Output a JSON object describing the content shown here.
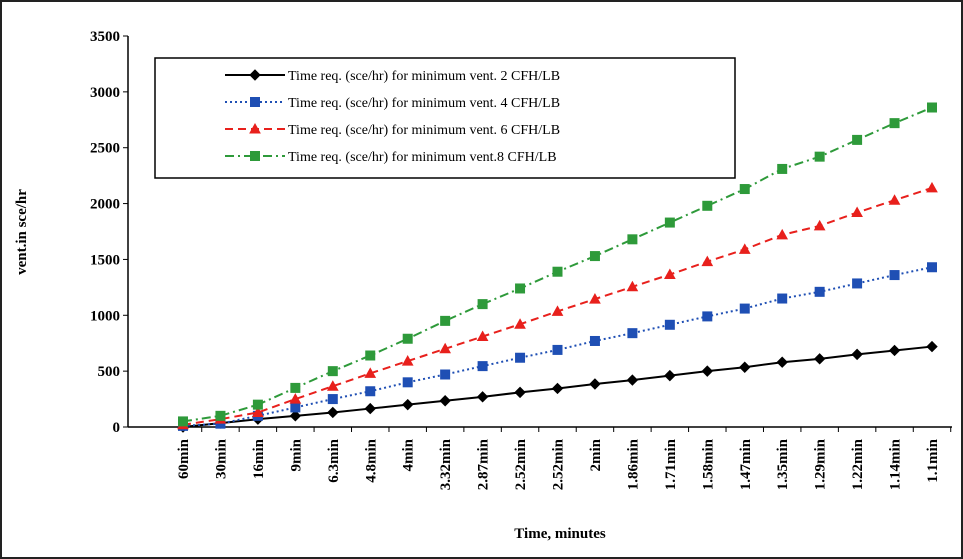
{
  "chart_data": {
    "type": "line",
    "x_label": "Time, minutes",
    "y_label": "vent.in sce/hr",
    "categories": [
      "60min",
      "30min",
      "16min",
      "9min",
      "6.3min",
      "4.8min",
      "4min",
      "3.32min",
      "2.87min",
      "2.52min",
      "2.52min",
      "2min",
      "1.86min",
      "1.71min",
      "1.58min",
      "1.47min",
      "1.35min",
      "1.29min",
      "1.22min",
      "1.14min",
      "1.1min"
    ],
    "ylim": [
      0,
      3500
    ],
    "yticks": [
      0,
      500,
      1000,
      1500,
      2000,
      2500,
      3000,
      3500
    ],
    "series": [
      {
        "name": "Time req. (sce/hr) for minimum vent. 2 CFH/LB",
        "color": "#000000",
        "marker": "diamond",
        "dash": "solid",
        "values": [
          0,
          35,
          70,
          100,
          130,
          165,
          200,
          235,
          270,
          310,
          345,
          385,
          420,
          460,
          500,
          535,
          580,
          610,
          650,
          685,
          720
        ]
      },
      {
        "name": "Time req. (sce/hr) for minimum vent. 4 CFH/LB",
        "color": "#1f4fb4",
        "marker": "square",
        "dash": "dotted",
        "values": [
          10,
          30,
          100,
          175,
          250,
          320,
          400,
          470,
          545,
          620,
          690,
          770,
          840,
          915,
          990,
          1060,
          1150,
          1210,
          1285,
          1360,
          1430
        ]
      },
      {
        "name": "Time req. (sce/hr) for minimum vent. 6 CFH/LB",
        "color": "#e8201c",
        "marker": "triangle",
        "dash": "dashed",
        "values": [
          20,
          70,
          130,
          250,
          365,
          480,
          590,
          700,
          810,
          920,
          1035,
          1145,
          1255,
          1365,
          1480,
          1590,
          1720,
          1800,
          1920,
          2030,
          2140
        ]
      },
      {
        "name": "Time req. (sce/hr) for minimum vent.8 CFH/LB",
        "color": "#2e9a3a",
        "marker": "square",
        "dash": "dashdot",
        "values": [
          50,
          100,
          200,
          350,
          500,
          640,
          790,
          950,
          1100,
          1240,
          1390,
          1530,
          1680,
          1830,
          1980,
          2130,
          2310,
          2420,
          2570,
          2720,
          2860
        ]
      }
    ]
  }
}
